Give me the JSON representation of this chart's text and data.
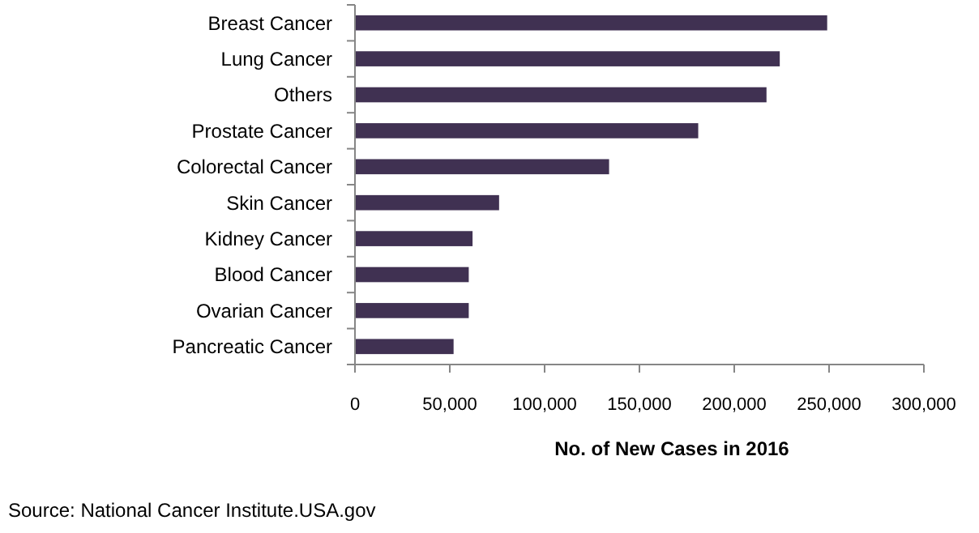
{
  "chart_data": {
    "type": "bar",
    "orientation": "horizontal",
    "categories": [
      "Breast Cancer",
      "Lung Cancer",
      "Others",
      "Prostate Cancer",
      "Colorectal Cancer",
      "Skin Cancer",
      "Kidney Cancer",
      "Blood Cancer",
      "Ovarian Cancer",
      "Pancreatic Cancer"
    ],
    "values": [
      249000,
      224000,
      217000,
      181000,
      134000,
      76000,
      62000,
      60000,
      60000,
      52000
    ],
    "color": "#403152",
    "xlim": [
      0,
      300000
    ],
    "xticks": [
      {
        "value": 0,
        "label": "0"
      },
      {
        "value": 50000,
        "label": "50,000"
      },
      {
        "value": 100000,
        "label": "100,000"
      },
      {
        "value": 150000,
        "label": "150,000"
      },
      {
        "value": 200000,
        "label": "200,000"
      },
      {
        "value": 250000,
        "label": "250,000"
      },
      {
        "value": 300000,
        "label": "300,000"
      }
    ],
    "xlabel": "No. of New Cases in 2016",
    "annotations": [
      "Source: National Cancer Institute.USA.gov"
    ]
  }
}
